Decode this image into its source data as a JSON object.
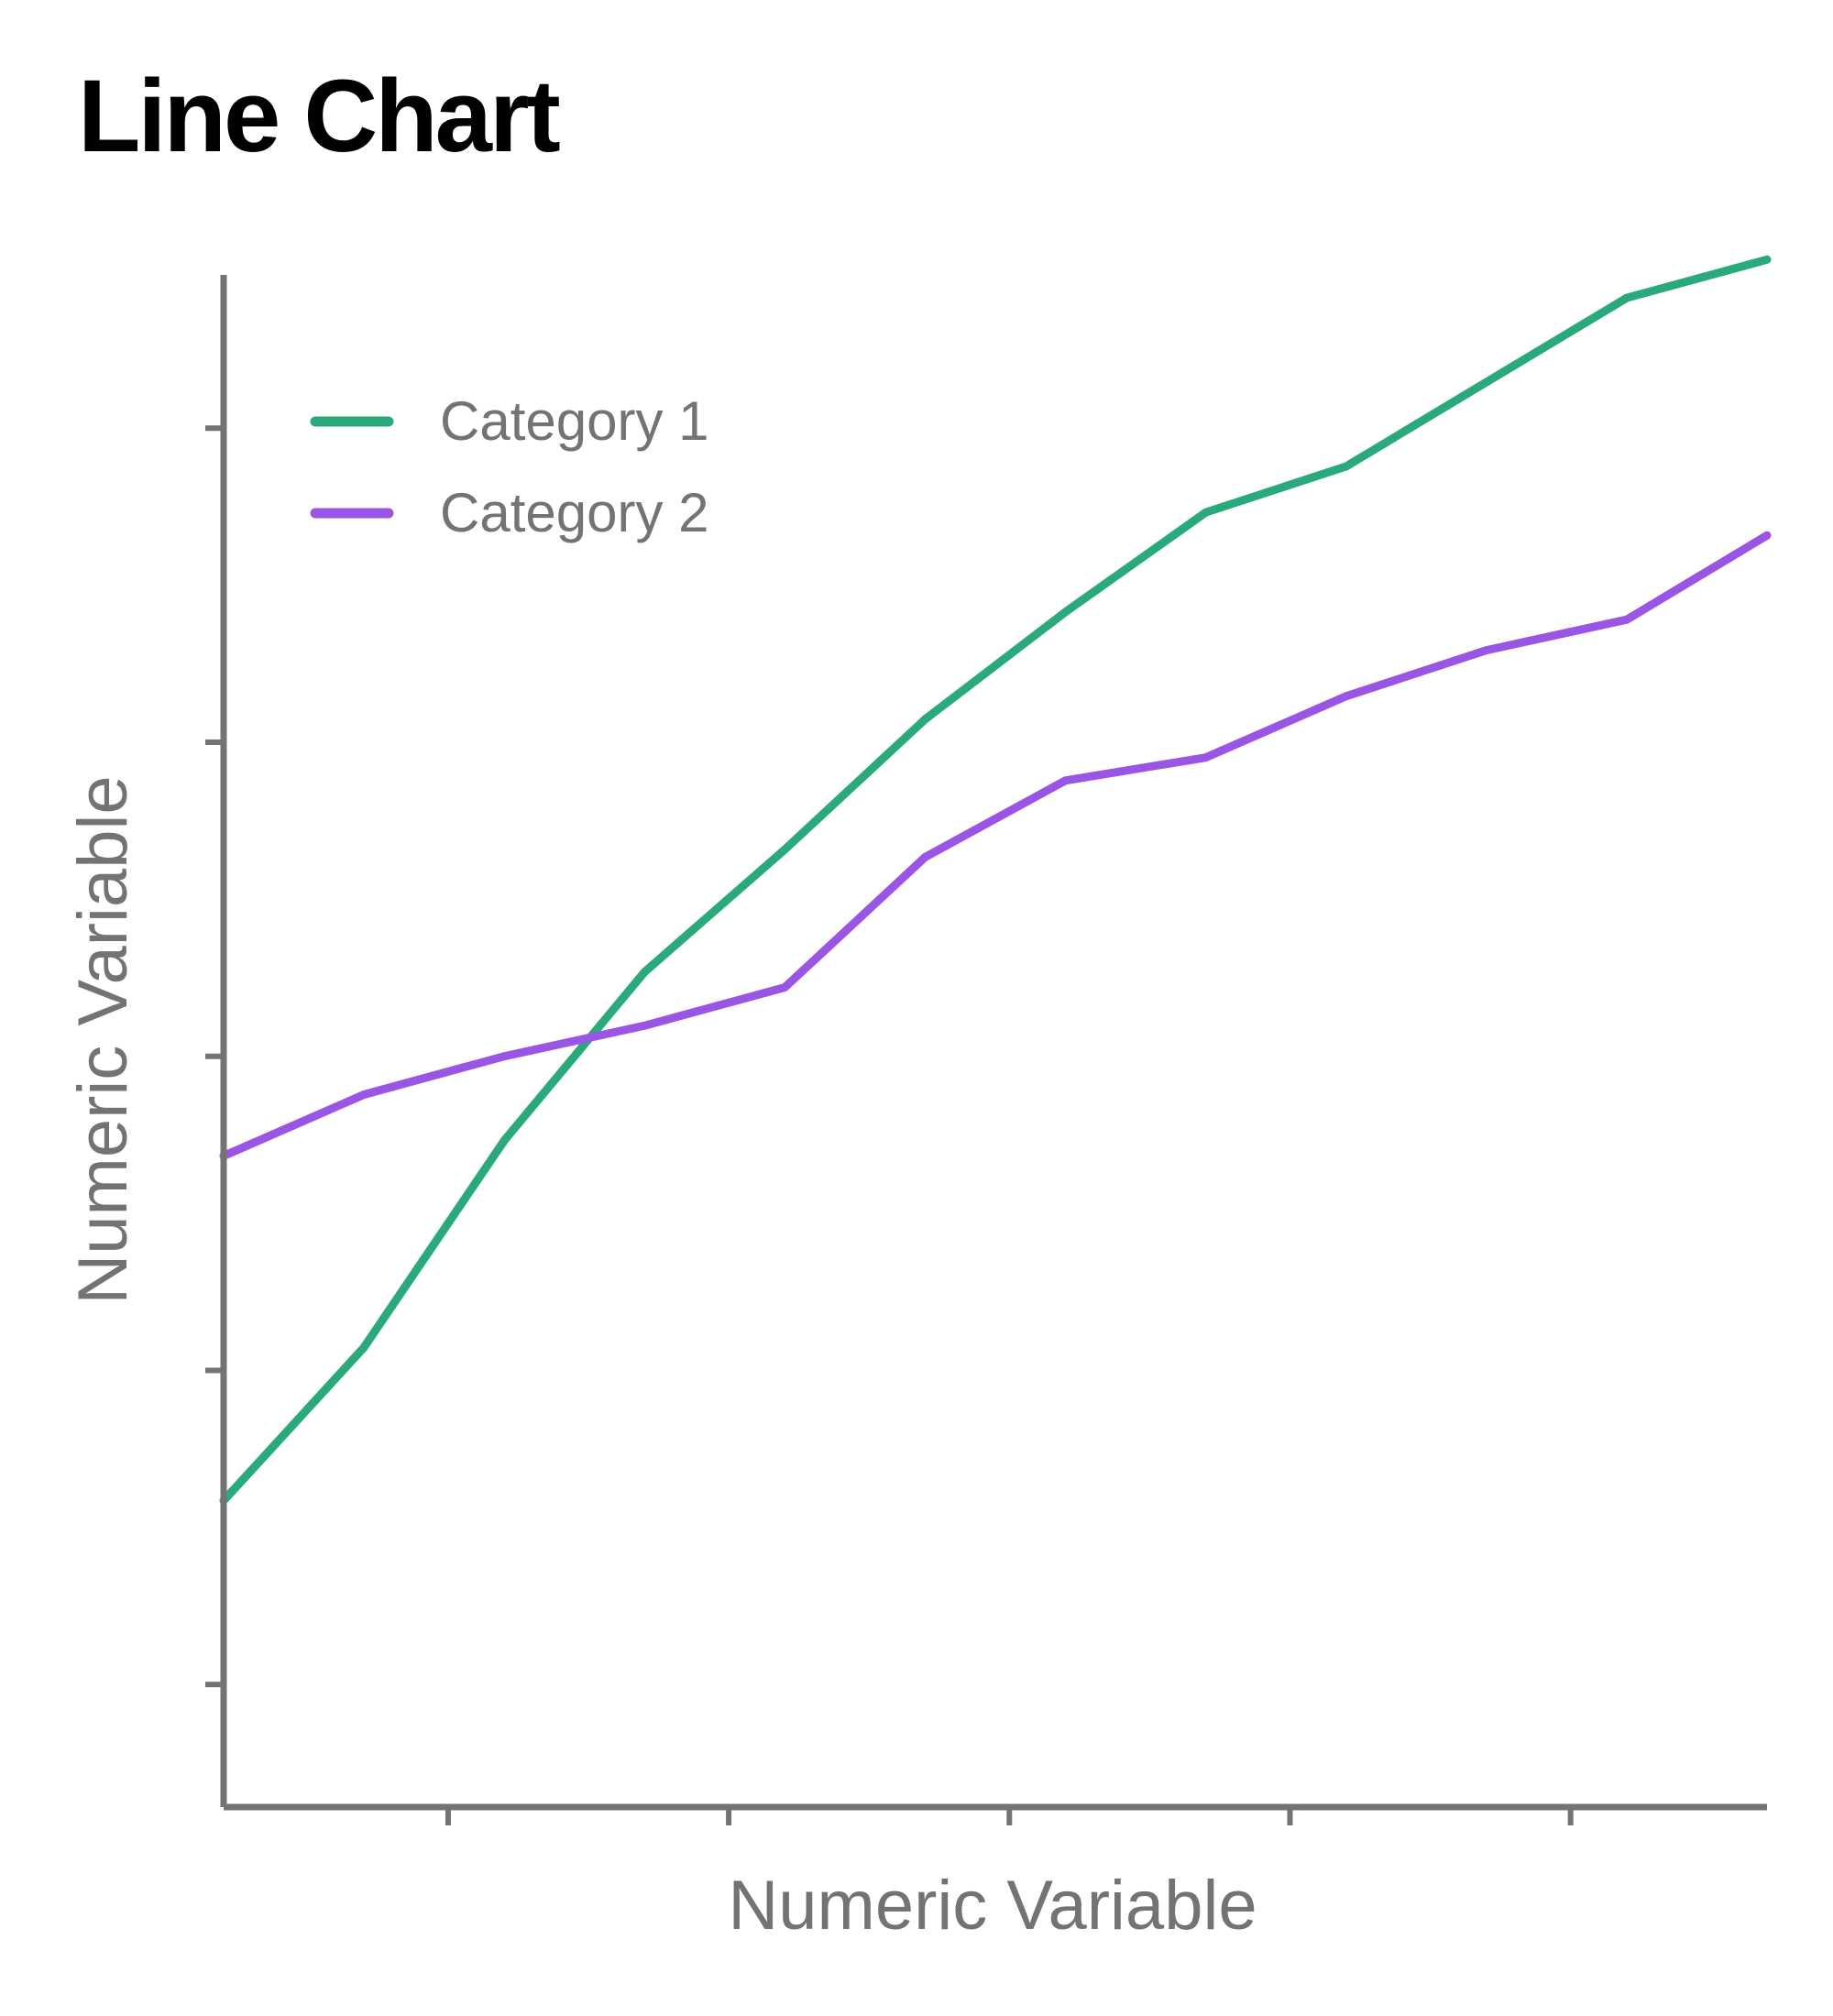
{
  "chart_data": {
    "type": "line",
    "title": "Line Chart",
    "xlabel": "Numeric Variable",
    "ylabel": "Numeric Variable",
    "x": [
      0,
      1,
      2,
      3,
      4,
      5,
      6,
      7,
      8,
      9,
      10,
      11
    ],
    "xlim": [
      0,
      11
    ],
    "ylim": [
      0,
      100
    ],
    "x_ticks": [
      1.6,
      3.6,
      5.6,
      7.6,
      9.6
    ],
    "y_ticks": [
      8,
      28.5,
      49,
      69.5,
      90
    ],
    "grid": false,
    "legend_position": "top-left",
    "series": [
      {
        "name": "Category 1",
        "color": "#2aaa7a",
        "values": [
          20,
          30,
          43.5,
          54.5,
          62.5,
          71,
          78,
          84.5,
          87.5,
          93,
          98.5,
          101
        ]
      },
      {
        "name": "Category 2",
        "color": "#9b55e5",
        "values": [
          42.5,
          46.5,
          49,
          51,
          53.5,
          62,
          67,
          68.5,
          72.5,
          75.5,
          77.5,
          83
        ]
      }
    ]
  }
}
